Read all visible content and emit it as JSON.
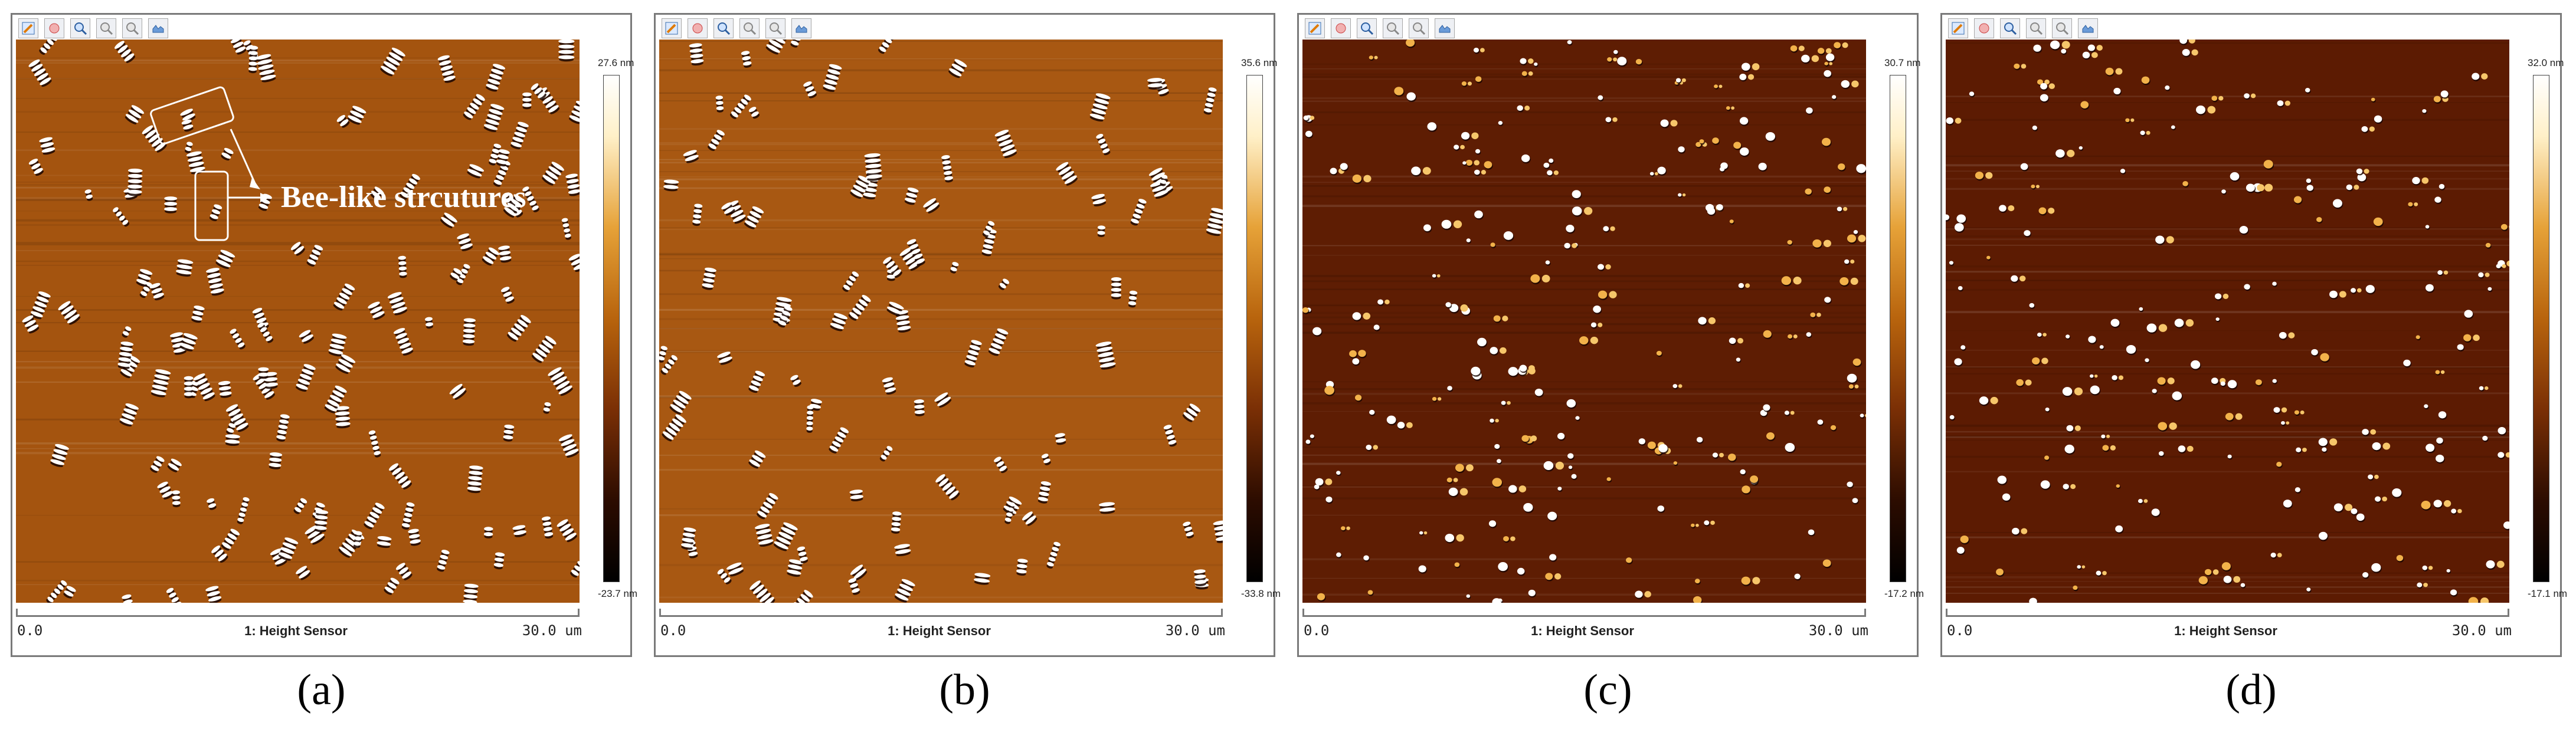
{
  "panels": [
    {
      "id": "a",
      "caption": "(a)",
      "max_label": "27.6 nm",
      "min_label": "-23.7 nm",
      "axis_start": "0.0",
      "axis_end": "30.0 um",
      "channel": "1: Height Sensor",
      "seed": 11,
      "style": "bee",
      "count": 150,
      "bg": "#a4540f"
    },
    {
      "id": "b",
      "caption": "(b)",
      "max_label": "35.6 nm",
      "min_label": "-33.8 nm",
      "axis_start": "0.0",
      "axis_end": "30.0 um",
      "channel": "1: Height Sensor",
      "seed": 27,
      "style": "bee",
      "count": 110,
      "bg": "#a85812"
    },
    {
      "id": "c",
      "caption": "(c)",
      "max_label": "30.7 nm",
      "min_label": "-17.2 nm",
      "axis_start": "0.0",
      "axis_end": "30.0 um",
      "channel": "1: Height Sensor",
      "seed": 43,
      "style": "dot",
      "count": 230,
      "bg": "#5e1d03"
    },
    {
      "id": "d",
      "caption": "(d)",
      "max_label": "32.0 nm",
      "min_label": "-17.1 nm",
      "axis_start": "0.0",
      "axis_end": "30.0 um",
      "channel": "1: Height Sensor",
      "seed": 71,
      "style": "dot",
      "count": 200,
      "bg": "#5c1b02"
    }
  ],
  "annotation": {
    "label": "Bee-like strcutures"
  },
  "toolbar_icons": [
    "pencil-icon",
    "stop-icon",
    "zoom-in-icon",
    "zoom-out-icon",
    "zoom-reset-icon",
    "export-icon"
  ]
}
